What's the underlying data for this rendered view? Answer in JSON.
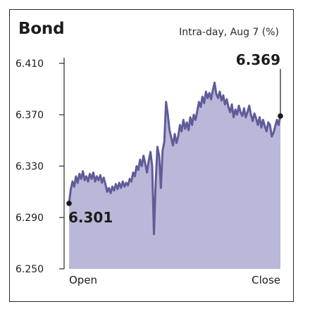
{
  "title": "Bond",
  "subtitle": "Intra-day, Aug 7 (%)",
  "colors": {
    "fill": "#b9b8d8",
    "line": "#5f5c99",
    "axis": "#2b2b2b",
    "text": "#1c1c1c"
  },
  "chart_data": {
    "type": "area",
    "title": "Bond",
    "subtitle": "Intra-day, Aug 7 (%)",
    "xlabel": "",
    "ylabel": "",
    "x_ticks": [
      "Open",
      "Close"
    ],
    "y_ticks": [
      "6.410",
      "6.370",
      "6.330",
      "6.290",
      "6.250"
    ],
    "y_tick_values": [
      6.41,
      6.37,
      6.33,
      6.29,
      6.25
    ],
    "ylim": [
      6.25,
      6.41
    ],
    "grid": false,
    "open_value": 6.301,
    "close_value": 6.369,
    "annotations": [
      {
        "label": "6.301",
        "point": "open"
      },
      {
        "label": "6.369",
        "point": "close"
      }
    ],
    "series": [
      {
        "values": [
          6.301,
          6.312,
          6.318,
          6.314,
          6.322,
          6.317,
          6.324,
          6.32,
          6.326,
          6.319,
          6.322,
          6.318,
          6.324,
          6.32,
          6.325,
          6.318,
          6.322,
          6.319,
          6.323,
          6.317,
          6.321,
          6.316,
          6.31,
          6.313,
          6.309,
          6.314,
          6.311,
          6.316,
          6.312,
          6.317,
          6.313,
          6.318,
          6.314,
          6.317,
          6.315,
          6.32,
          6.318,
          6.325,
          6.322,
          6.33,
          6.327,
          6.335,
          6.33,
          6.338,
          6.332,
          6.325,
          6.334,
          6.341,
          6.33,
          6.277,
          6.318,
          6.345,
          6.338,
          6.313,
          6.342,
          6.349,
          6.38,
          6.37,
          6.358,
          6.352,
          6.346,
          6.355,
          6.348,
          6.353,
          6.362,
          6.357,
          6.366,
          6.359,
          6.364,
          6.358,
          6.368,
          6.362,
          6.37,
          6.366,
          6.373,
          6.38,
          6.376,
          6.384,
          6.379,
          6.388,
          6.383,
          6.387,
          6.382,
          6.389,
          6.395,
          6.386,
          6.383,
          6.388,
          6.381,
          6.385,
          6.378,
          6.382,
          6.376,
          6.372,
          6.378,
          6.368,
          6.374,
          6.37,
          6.377,
          6.372,
          6.369,
          6.375,
          6.368,
          6.372,
          6.377,
          6.37,
          6.365,
          6.371,
          6.367,
          6.362,
          6.368,
          6.36,
          6.366,
          6.361,
          6.357,
          6.364,
          6.362,
          6.353,
          6.356,
          6.361,
          6.366,
          6.362,
          6.369
        ]
      }
    ]
  }
}
